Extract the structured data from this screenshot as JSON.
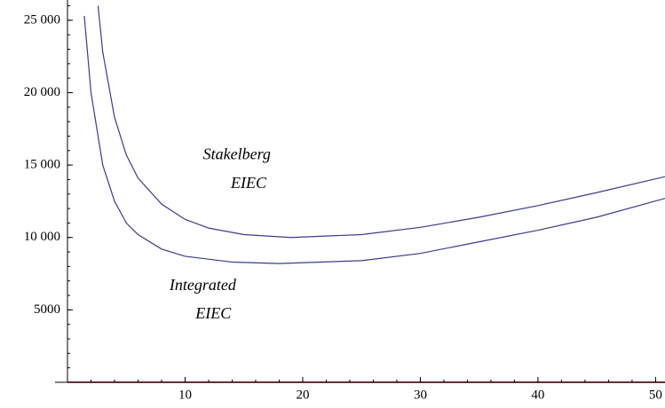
{
  "chart_data": {
    "type": "line",
    "xlim": [
      0,
      50.8
    ],
    "ylim": [
      0,
      26400
    ],
    "xticks": [
      10,
      20,
      30,
      40,
      50
    ],
    "yticks": [
      5000,
      {
        "value": 10000,
        "label": "10 000"
      },
      {
        "value": 15000,
        "label": "15 000"
      },
      {
        "value": 20000,
        "label": "20 000"
      },
      {
        "value": 25000,
        "label": "25 000"
      }
    ],
    "series": [
      {
        "color": "#3b3b8f",
        "x": [
          2.6,
          3,
          4,
          5,
          6,
          8,
          10,
          12,
          15,
          19,
          25,
          30,
          35,
          40,
          45,
          50.8
        ],
        "values": [
          26000,
          22800,
          18300,
          15700,
          14100,
          12300,
          11250,
          10650,
          10200,
          10000,
          10200,
          10700,
          11400,
          12200,
          13100,
          14200
        ]
      },
      {
        "color": "#3b3b8f",
        "x": [
          1.43,
          2,
          3,
          4,
          5,
          6,
          8,
          10,
          14,
          18,
          25,
          30,
          35,
          40,
          45,
          50.8
        ],
        "values": [
          25300,
          20000,
          15000,
          12500,
          11000,
          10200,
          9200,
          8700,
          8300,
          8200,
          8400,
          8900,
          9700,
          10500,
          11400,
          12700
        ]
      },
      {
        "color": "#c06070",
        "x": [
          0,
          50.8
        ],
        "values": [
          0,
          0
        ]
      }
    ],
    "annotations": [
      {
        "text": "Stakelberg",
        "x": 14.4,
        "y": 15650
      },
      {
        "text": "EIEC",
        "x": 15.4,
        "y": 13680
      },
      {
        "text": "Integrated",
        "x": 11.5,
        "y": 6630
      },
      {
        "text": "EIEC",
        "x": 12.4,
        "y": 4660
      }
    ]
  }
}
